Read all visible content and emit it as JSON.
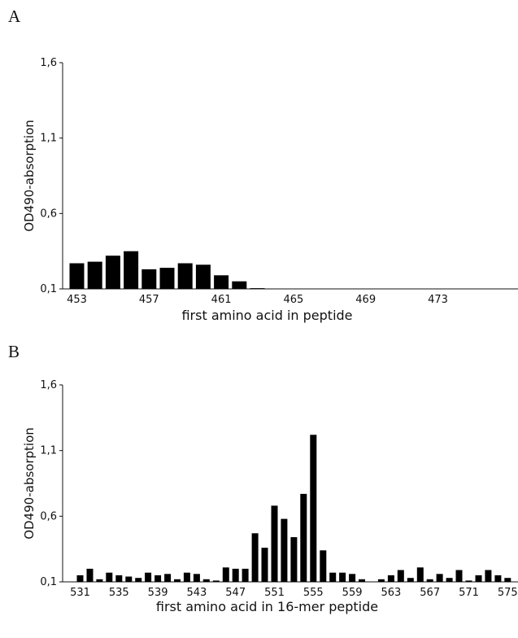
{
  "chart_data": [
    {
      "panel_label": "A",
      "type": "bar",
      "xlabel": "first amino acid in peptide",
      "ylabel": "OD490-absorption",
      "ylim": [
        0.1,
        1.6
      ],
      "yticks": [
        "0,1",
        "0,6",
        "1,1",
        "1,6"
      ],
      "ytick_values": [
        0.1,
        0.6,
        1.1,
        1.6
      ],
      "x": [
        453,
        454,
        455,
        456,
        457,
        458,
        459,
        460,
        461,
        462,
        463,
        464,
        465,
        466,
        467,
        468,
        469,
        470,
        471,
        472,
        473,
        474,
        475,
        476
      ],
      "xtick_labels": [
        "453",
        "457",
        "461",
        "465",
        "469",
        "473"
      ],
      "xtick_values": [
        453,
        457,
        461,
        465,
        469,
        473
      ],
      "values": [
        0.27,
        0.28,
        0.32,
        0.35,
        0.23,
        0.24,
        0.27,
        0.26,
        0.19,
        0.15,
        0.105,
        0.1,
        0.1,
        0.1,
        0.1,
        0.1,
        0.1,
        0.1,
        0.1,
        0.1,
        0.1,
        0.1,
        0.1,
        0.1
      ],
      "grid": false,
      "color": "#000000"
    },
    {
      "panel_label": "B",
      "type": "bar",
      "xlabel": "first amino acid in 16-mer peptide",
      "ylabel": "OD490-absorption",
      "ylim": [
        0.1,
        1.6
      ],
      "yticks": [
        "0,1",
        "0,6",
        "1,1",
        "1,6"
      ],
      "ytick_values": [
        0.1,
        0.6,
        1.1,
        1.6
      ],
      "x": [
        531,
        532,
        533,
        534,
        535,
        536,
        537,
        538,
        539,
        540,
        541,
        542,
        543,
        544,
        545,
        546,
        547,
        548,
        549,
        550,
        551,
        552,
        553,
        554,
        555,
        556,
        557,
        558,
        559,
        560,
        561,
        562,
        563,
        564,
        565,
        566,
        567,
        568,
        569,
        570,
        571,
        572,
        573,
        574,
        575,
        576
      ],
      "xtick_labels": [
        "531",
        "535",
        "539",
        "543",
        "547",
        "551",
        "555",
        "559",
        "563",
        "567",
        "571",
        "575"
      ],
      "xtick_values": [
        531,
        535,
        539,
        543,
        547,
        551,
        555,
        559,
        563,
        567,
        571,
        575
      ],
      "values": [
        0.15,
        0.2,
        0.12,
        0.17,
        0.15,
        0.14,
        0.13,
        0.17,
        0.15,
        0.16,
        0.12,
        0.17,
        0.16,
        0.12,
        0.11,
        0.21,
        0.2,
        0.2,
        0.47,
        0.36,
        0.68,
        0.58,
        0.44,
        0.77,
        1.22,
        0.34,
        0.17,
        0.17,
        0.16,
        0.12,
        0.1,
        0.12,
        0.15,
        0.19,
        0.13,
        0.21,
        0.12,
        0.16,
        0.13,
        0.19,
        0.11,
        0.15,
        0.19,
        0.15,
        0.13,
        0.1
      ],
      "grid": false,
      "color": "#000000"
    }
  ]
}
